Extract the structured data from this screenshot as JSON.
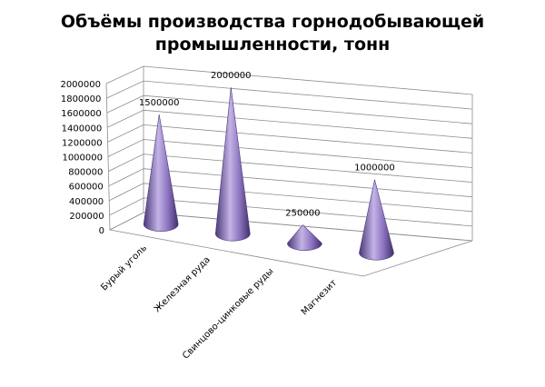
{
  "chart_data": {
    "type": "bar",
    "bar_shape": "3d-cone",
    "title_line1": "Объёмы производства горнодобывающей",
    "title_line2": "промышленности, тонн",
    "categories": [
      "Бурый уголь",
      "Железная руда",
      "Свинцово-цинковые руды",
      "Магнезит"
    ],
    "values": [
      1500000,
      2000000,
      250000,
      1000000
    ],
    "data_labels": [
      "1500000",
      "2000000",
      "250000",
      "1000000"
    ],
    "yticks": [
      "0",
      "200000",
      "400000",
      "600000",
      "800000",
      "1000000",
      "1200000",
      "1400000",
      "1600000",
      "1800000",
      "2000000"
    ],
    "ylim": [
      0,
      2000000
    ],
    "grid": true,
    "legend": "none",
    "colors": {
      "cone": "#8d74c0",
      "cone_light": "#c3b3e6",
      "cone_dark": "#4b3878",
      "grid": "#8c8c8c"
    }
  }
}
